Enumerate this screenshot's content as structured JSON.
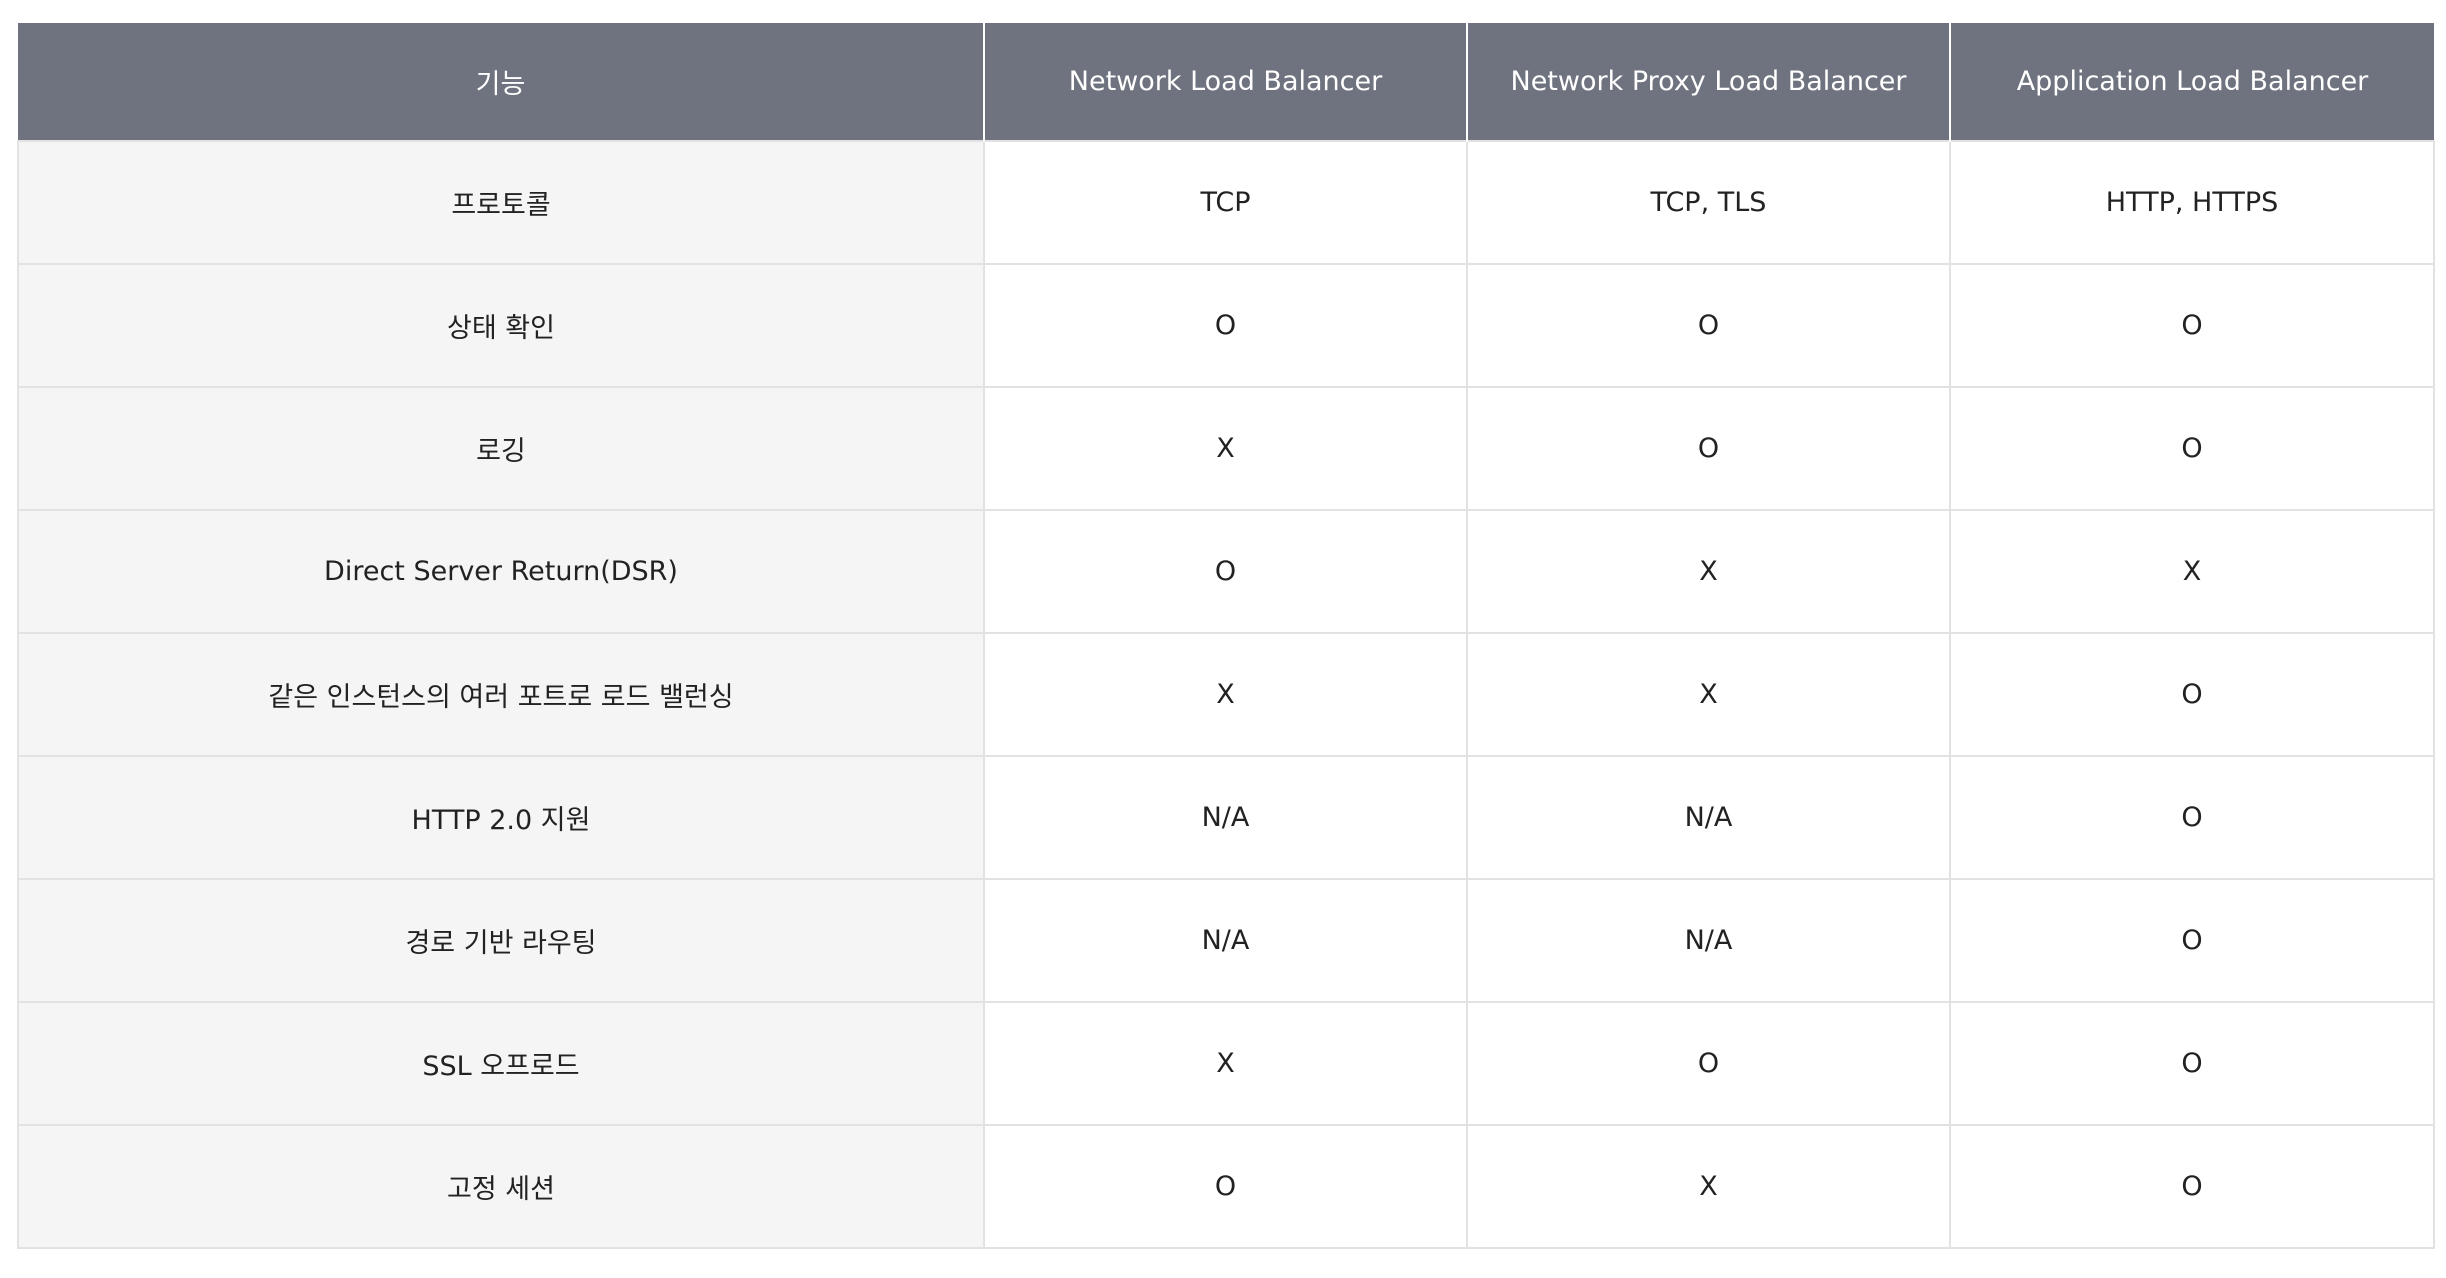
{
  "table": {
    "headers": [
      "기능",
      "Network Load Balancer",
      "Network Proxy Load Balancer",
      "Application Load Balancer"
    ],
    "rows": [
      [
        "프로토콜",
        "TCP",
        "TCP, TLS",
        "HTTP, HTTPS"
      ],
      [
        "상태 확인",
        "O",
        "O",
        "O"
      ],
      [
        "로깅",
        "X",
        "O",
        "O"
      ],
      [
        "Direct Server Return(DSR)",
        "O",
        "X",
        "X"
      ],
      [
        "같은 인스턴스의 여러 포트로 로드 밸런싱",
        "X",
        "X",
        "O"
      ],
      [
        "HTTP 2.0 지원",
        "N/A",
        "N/A",
        "O"
      ],
      [
        "경로 기반 라우팅",
        "N/A",
        "N/A",
        "O"
      ],
      [
        "SSL 오프로드",
        "X",
        "O",
        "O"
      ],
      [
        "고정 세션",
        "O",
        "X",
        "O"
      ]
    ]
  }
}
